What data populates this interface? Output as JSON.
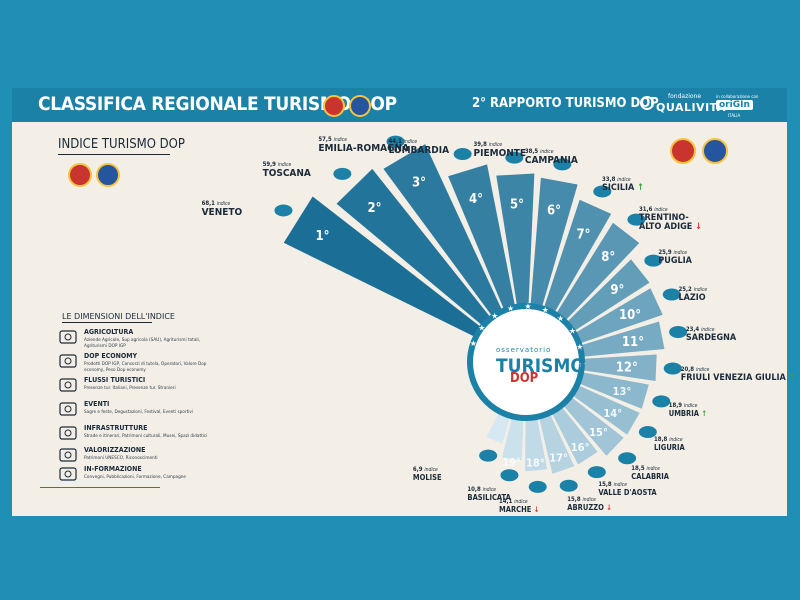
{
  "header": {
    "title": "CLASSIFICA REGIONALE TURISMO DOP",
    "subtitle": "2° RAPPORTO TURISMO DOP",
    "qualivita_sub": "fondazione",
    "qualivita_name": "QUALIVITA",
    "origin_sub": "in collaborazione con",
    "origin_name": "oriGIn",
    "origin_italia": "ITALIA"
  },
  "legend": {
    "indice_title": "INDICE TURISMO DOP",
    "dimensions_title": "LE DIMENSIONI DELL'INDICE",
    "dimensions": [
      {
        "name": "AGRICOLTURA",
        "desc": "Aziende Agricole, Sup agricola (SAU), Agriturismi totali, Agriturismi DOP IGP",
        "icon": "tractor-icon"
      },
      {
        "name": "DOP ECONOMY",
        "desc": "Prodotti DOP IGP, Consorzi di tutela, Operatori, Valore Dop economy, Peso Dop economy",
        "icon": "factory-icon"
      },
      {
        "name": "FLUSSI TURISTICI",
        "desc": "Presenze tur. Italiani, Presenze tur. Stranieri",
        "icon": "globe-icon"
      },
      {
        "name": "EVENTI",
        "desc": "Sagre e feste, Degustazioni, Festival, Eventi sportivi",
        "icon": "calendar-icon"
      },
      {
        "name": "INFRASTRUTTURE",
        "desc": "Strade e itinerari, Patrimoni culturali, Musei, Spazi didattici",
        "icon": "map-pin-icon"
      },
      {
        "name": "VALORIZZAZIONE",
        "desc": "Patrimoni UNESCO, Riconoscimenti",
        "icon": "medal-icon"
      },
      {
        "name": "IN-FORMAZIONE",
        "desc": "Convegni, Pubblicazioni, Formazione, Campagne",
        "icon": "people-icon"
      }
    ]
  },
  "center": {
    "small": "osservatorio",
    "big": "TURISMO",
    "dop": "DOP"
  },
  "colors": {
    "banner": "#1b81a7",
    "card": "#f3efe6",
    "page": "#1f8fb6",
    "ray_dark": "#1b6f96",
    "ray_light": "#d6e8f1",
    "up": "#3aa23a",
    "down": "#d23a3a"
  },
  "chart_data": {
    "type": "bar",
    "title": "INDICE TURISMO DOP",
    "value_suffix": "indice",
    "categories": [
      "Veneto",
      "Toscana",
      "Emilia-Romagna",
      "Lombardia",
      "Piemonte",
      "Campania",
      "Sicilia",
      "Trentino-Alto Adige",
      "Puglia",
      "Lazio",
      "Sardegna",
      "Friuli Venezia Giulia",
      "Umbria",
      "Liguria",
      "Calabria",
      "Valle d'Aosta",
      "Abruzzo",
      "Marche",
      "Basilicata",
      "Molise"
    ],
    "ranks": [
      "1°",
      "2°",
      "3°",
      "4°",
      "5°",
      "6°",
      "7°",
      "8°",
      "9°",
      "10°",
      "11°",
      "12°",
      "13°",
      "14°",
      "15°",
      "16°",
      "17°",
      "18°",
      "19°",
      "20°"
    ],
    "labels": [
      "VENETO",
      "TOSCANA",
      "EMILIA-ROMAGNA",
      "LOMBARDIA",
      "PIEMONTE",
      "CAMPANIA",
      "SICILIA",
      "TRENTINO-\nALTO ADIGE",
      "PUGLIA",
      "LAZIO",
      "SARDEGNA",
      "FRIULI VENEZIA GIULIA",
      "UMBRIA",
      "LIGURIA",
      "CALABRIA",
      "VALLE D'AOSTA",
      "ABRUZZO",
      "MARCHE",
      "BASILICATA",
      "MOLISE"
    ],
    "values": [
      68.1,
      59.9,
      57.5,
      44.1,
      39.8,
      38.5,
      33.8,
      31.6,
      25.9,
      25.2,
      23.4,
      20.8,
      18.9,
      18.8,
      18.5,
      15.8,
      15.8,
      14.1,
      10.8,
      6.9
    ],
    "value_labels": [
      "68,1",
      "59,9",
      "57,5",
      "44,1",
      "39,8",
      "38,5",
      "33,8",
      "31,6",
      "25,9",
      "25,2",
      "23,4",
      "20,8",
      "18,9",
      "18,8",
      "18,5",
      "15,8",
      "15,8",
      "14,1",
      "10,8",
      "6,9"
    ],
    "trend": [
      "",
      "",
      "",
      "",
      "",
      "",
      "up",
      "down",
      "",
      "",
      "",
      "up",
      "up",
      "",
      "",
      "",
      "down",
      "down",
      "",
      ""
    ]
  }
}
